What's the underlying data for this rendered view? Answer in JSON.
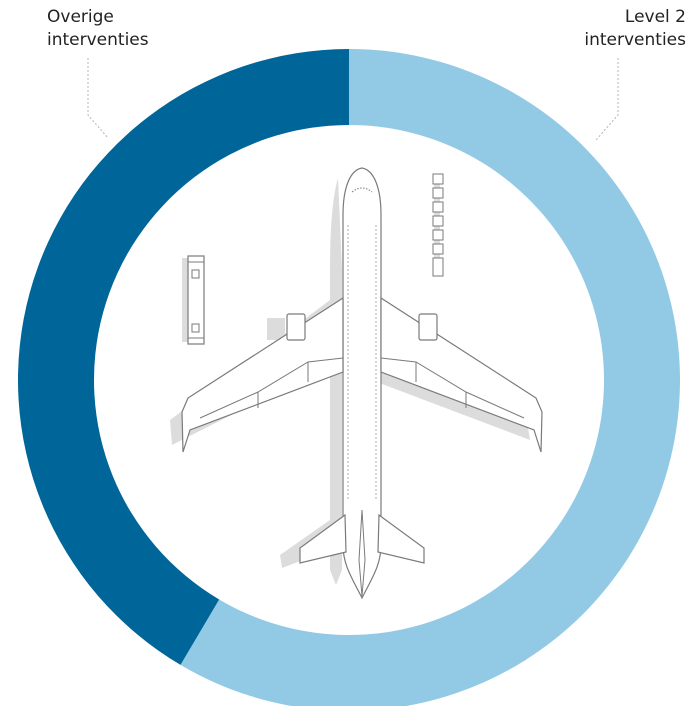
{
  "chart_data": {
    "type": "pie",
    "donut": true,
    "categories": [
      "Level 2 interventies",
      "Overige interventies"
    ],
    "values": [
      58.5,
      41.5
    ],
    "unit": "%",
    "legend": [
      {
        "line1": "Overige",
        "line2": "interventies",
        "color": "#006699"
      },
      {
        "line1": "Level 2",
        "line2": "interventies",
        "color": "#92CAE6"
      }
    ]
  },
  "colors": {
    "level2": "#92CAE6",
    "overige": "#006699",
    "plane_outline": "#7a7a7a",
    "shadow": "#dcdcdc"
  },
  "illustration": {
    "center_icon": "airplane-top-view-icon"
  }
}
